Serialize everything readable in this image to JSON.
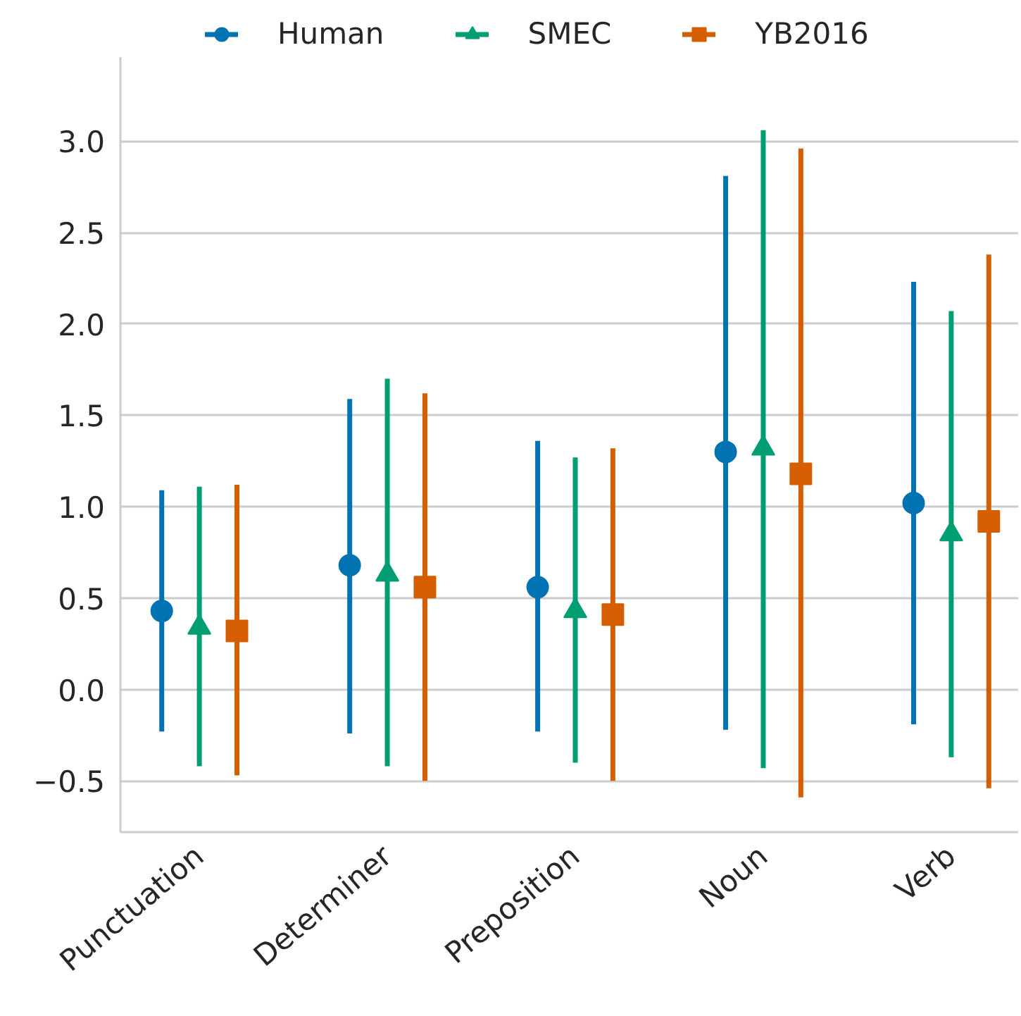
{
  "chart_data": {
    "type": "scatter",
    "categories": [
      "Punctuation",
      "Determiner",
      "Preposition",
      "Noun",
      "Verb"
    ],
    "series": [
      {
        "name": "Human",
        "color": "#0173b2",
        "marker": "circle",
        "values": [
          0.43,
          0.68,
          0.56,
          1.3,
          1.02
        ],
        "errors": [
          [
            -0.23,
            1.09
          ],
          [
            -0.24,
            1.59
          ],
          [
            -0.23,
            1.36
          ],
          [
            -0.22,
            2.81
          ],
          [
            -0.19,
            2.23
          ]
        ]
      },
      {
        "name": "SMEC",
        "color": "#029e73",
        "marker": "triangle",
        "values": [
          0.34,
          0.63,
          0.43,
          1.32,
          0.85
        ],
        "errors": [
          [
            -0.42,
            1.11
          ],
          [
            -0.42,
            1.7
          ],
          [
            -0.4,
            1.27
          ],
          [
            -0.43,
            3.06
          ],
          [
            -0.37,
            2.07
          ]
        ]
      },
      {
        "name": "YB2016",
        "color": "#d55e00",
        "marker": "square",
        "values": [
          0.32,
          0.56,
          0.41,
          1.18,
          0.92
        ],
        "errors": [
          [
            -0.47,
            1.12
          ],
          [
            -0.5,
            1.62
          ],
          [
            -0.5,
            1.32
          ],
          [
            -0.59,
            2.96
          ],
          [
            -0.54,
            2.38
          ]
        ]
      }
    ],
    "ylim": [
      -0.78,
      3.46
    ],
    "yticks": [
      {
        "value": -0.5,
        "label": "−0.5"
      },
      {
        "value": 0,
        "label": "0.0"
      },
      {
        "value": 0.5,
        "label": "0.5"
      },
      {
        "value": 1,
        "label": "1.0"
      },
      {
        "value": 1.5,
        "label": "1.5"
      },
      {
        "value": 2,
        "label": "2.0"
      },
      {
        "value": 2.5,
        "label": "2.5"
      },
      {
        "value": 3,
        "label": "3.0"
      }
    ],
    "grid": "y",
    "legend": "top"
  }
}
